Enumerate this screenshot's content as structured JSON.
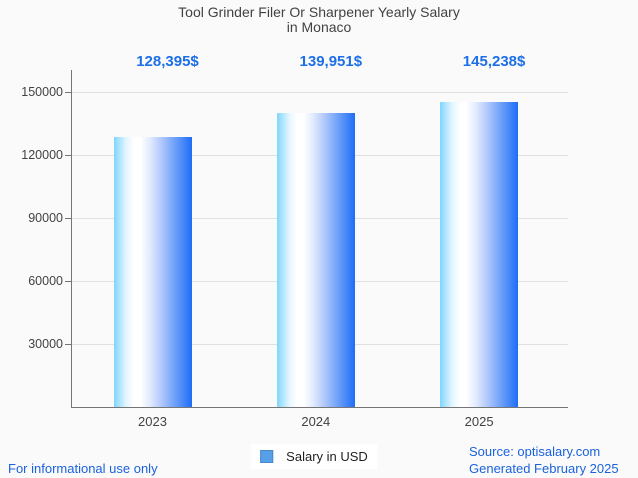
{
  "title": {
    "line1": "Tool Grinder Filer Or Sharpener Yearly Salary",
    "line2": "in Monaco"
  },
  "chart_data": {
    "type": "bar",
    "title": "Tool Grinder Filer Or Sharpener Yearly Salary in Monaco",
    "categories": [
      "2023",
      "2024",
      "2025"
    ],
    "values": [
      128395,
      139951,
      145238
    ],
    "value_labels": [
      "128,395$",
      "139,951$",
      "145,238$"
    ],
    "series": [
      {
        "name": "Salary in USD",
        "values": [
          128395,
          139951,
          145238
        ]
      }
    ],
    "xlabel": "",
    "ylabel": "",
    "ylim": [
      0,
      160000
    ],
    "yticks": [
      30000,
      60000,
      90000,
      120000,
      150000
    ],
    "ytick_labels": [
      "30000",
      "60000",
      "90000",
      "120000",
      "150000"
    ],
    "grid": true,
    "legend_position": "bottom"
  },
  "legend": {
    "label": "Salary in USD"
  },
  "footer": {
    "left": "For informational use only",
    "source": "Source: optisalary.com",
    "generated": "Generated February 2025"
  },
  "colors": {
    "background": "#fafafa",
    "text": "#424242",
    "axis": "#757575",
    "grid": "#e0e0e0",
    "accent_blue": "#1d6fe8",
    "footer_blue": "#1a62dd",
    "legend_swatch": "#57a0e8",
    "legend_swatch_border": "#4a87c8",
    "bar_gradient_stops": [
      "#7fd6fd",
      "#e6f6ff",
      "#ffffff",
      "#ffffff",
      "#dfe9fd",
      "#a9c3fb",
      "#639af8",
      "#1e6ef7"
    ],
    "bar_gradient_positions": [
      0,
      16,
      26,
      34,
      47,
      63,
      81,
      100
    ]
  }
}
